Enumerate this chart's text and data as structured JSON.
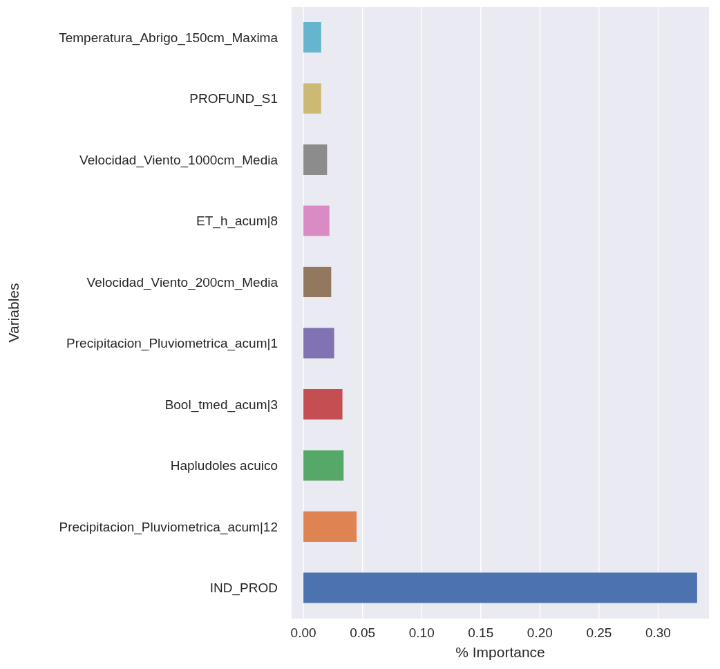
{
  "chart_data": {
    "type": "bar",
    "orientation": "horizontal",
    "xlabel": "% Importance",
    "ylabel": "Variables",
    "categories": [
      "Temperatura_Abrigo_150cm_Maxima",
      "PROFUND_S1",
      "Velocidad_Viento_1000cm_Media",
      "ET_h_acum|8",
      "Velocidad_Viento_200cm_Media",
      "Precipitacion_Pluviometrica_acum|1",
      "Bool_tmed_acum|3",
      "Hapludoles acuico",
      "Precipitacion_Pluviometrica_acum|12",
      "IND_PROD"
    ],
    "values": [
      0.015,
      0.015,
      0.02,
      0.022,
      0.0235,
      0.026,
      0.033,
      0.034,
      0.045,
      0.333
    ],
    "colors": [
      "#64b5cd",
      "#ccb974",
      "#8c8c8c",
      "#da8bc3",
      "#937860",
      "#8172b3",
      "#c44e52",
      "#55a868",
      "#dd8452",
      "#4c72b0"
    ],
    "xlim": [
      -0.01,
      0.343
    ],
    "xticks": [
      {
        "value": 0,
        "label": "0.00"
      },
      {
        "value": 0.05,
        "label": "0.05"
      },
      {
        "value": 0.1,
        "label": "0.10"
      },
      {
        "value": 0.15,
        "label": "0.15"
      },
      {
        "value": 0.2,
        "label": "0.20"
      },
      {
        "value": 0.25,
        "label": "0.25"
      },
      {
        "value": 0.3,
        "label": "0.30"
      }
    ],
    "grid": "x"
  }
}
